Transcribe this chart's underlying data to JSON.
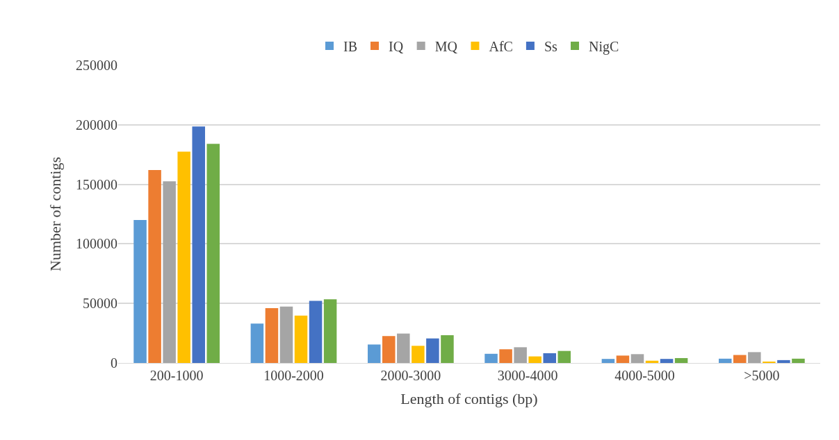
{
  "chart_data": {
    "type": "bar",
    "xlabel": "Length of contigs (bp)",
    "ylabel": "Number of contigs",
    "categories": [
      "200-1000",
      "1000-2000",
      "2000-3000",
      "3000-4000",
      "4000-5000",
      ">5000"
    ],
    "series": [
      {
        "name": "IB",
        "color": "#5b9bd5",
        "values": [
          120000,
          33000,
          15500,
          7700,
          3400,
          3600
        ]
      },
      {
        "name": "IQ",
        "color": "#ed7d31",
        "values": [
          162000,
          46000,
          22600,
          11500,
          6200,
          6700
        ]
      },
      {
        "name": "MQ",
        "color": "#a5a5a5",
        "values": [
          152500,
          47400,
          24700,
          13200,
          7400,
          9100
        ]
      },
      {
        "name": "AfC",
        "color": "#ffc000",
        "values": [
          177500,
          39800,
          14400,
          5500,
          1900,
          1000
        ]
      },
      {
        "name": "Ss",
        "color": "#4472c4",
        "values": [
          198500,
          52200,
          20600,
          8200,
          3400,
          2400
        ]
      },
      {
        "name": "NigC",
        "color": "#70ad47",
        "values": [
          184000,
          53400,
          23300,
          10100,
          4100,
          3600
        ]
      }
    ],
    "ylim": [
      0,
      250000
    ],
    "yticks": [
      0,
      50000,
      100000,
      150000,
      200000,
      250000
    ],
    "grid": "y",
    "legend": "top"
  }
}
